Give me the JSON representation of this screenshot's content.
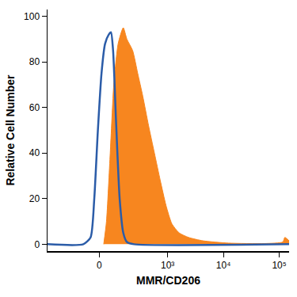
{
  "chart_data": {
    "type": "line",
    "x_label": "MMR/CD206",
    "y_label": "Relative Cell Number",
    "xlim": [
      -500,
      150000
    ],
    "ylim": [
      -3,
      103
    ],
    "xticks": [
      0,
      {
        "value": 1000,
        "label": "10³"
      },
      {
        "value": 10000,
        "label": "10⁴"
      },
      {
        "value": 100000,
        "label": "10⁵"
      }
    ],
    "yticks": [
      0,
      20,
      40,
      60,
      80,
      100
    ],
    "grid": false,
    "series": [
      {
        "type": "area",
        "color": "#f7861f",
        "x": [
          22,
          36,
          56,
          76,
          103,
          139,
          168,
          222,
          280,
          350,
          450,
          576,
          736,
          936,
          1192,
          1610,
          2370,
          4320,
          12300,
          55000,
          116000,
          126000,
          150000
        ],
        "values": [
          0,
          10,
          40,
          70,
          88,
          95,
          90,
          85,
          75,
          65,
          52,
          40,
          28,
          17,
          9,
          5,
          3,
          1.5,
          0.5,
          0.3,
          1,
          3,
          1.5
        ]
      },
      {
        "type": "line",
        "color": "#2b5ca8",
        "x": [
          -500,
          -85,
          -44,
          -25,
          -7,
          11,
          29,
          48,
          60,
          72,
          89,
          113,
          139,
          168,
          237,
          150000
        ],
        "values": [
          0,
          0,
          3,
          20,
          50,
          75,
          88,
          92,
          93,
          85,
          55,
          20,
          5,
          1,
          0,
          0
        ]
      }
    ]
  }
}
